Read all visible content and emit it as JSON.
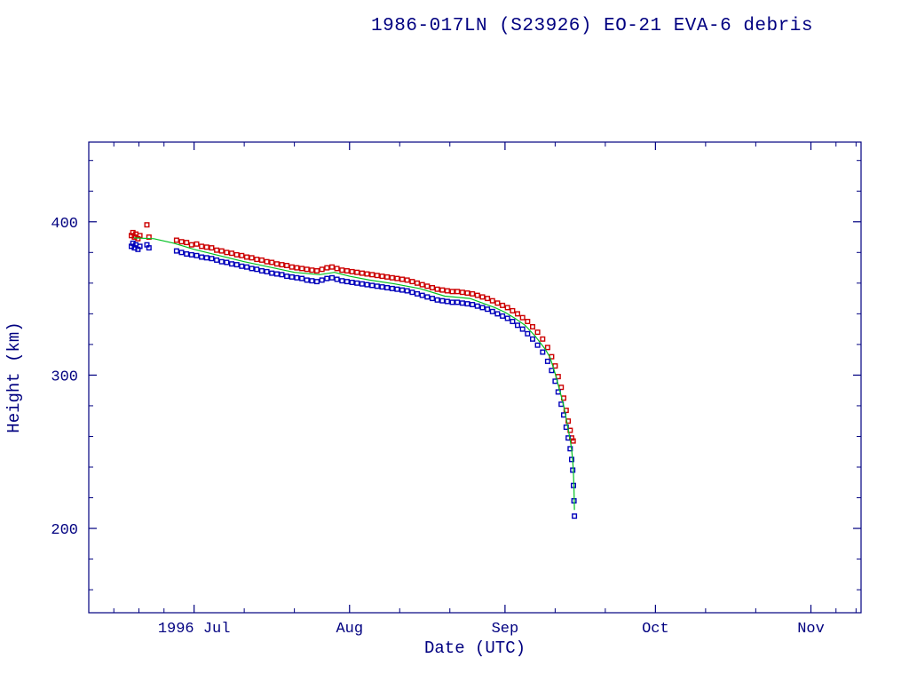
{
  "page": {
    "background": "#ffffff"
  },
  "chart_data": {
    "type": "scatter",
    "title": "1986-017LN (S23926) EO-21 EVA-6 debris",
    "xlabel": "Date (UTC)",
    "ylabel": "Height (km)",
    "x_unit": "days since 1996-06-01",
    "xlim": [
      9,
      163
    ],
    "ylim": [
      145,
      452
    ],
    "grid": false,
    "legend": "none",
    "axis_color": "#000080",
    "x_major_ticks": [
      {
        "value": 30,
        "label": "1996 Jul"
      },
      {
        "value": 61,
        "label": "Aug"
      },
      {
        "value": 92,
        "label": "Sep"
      },
      {
        "value": 122,
        "label": "Oct"
      },
      {
        "value": 153,
        "label": "Nov"
      }
    ],
    "x_minor_ticks": [
      14,
      19,
      24,
      40,
      50,
      71,
      81,
      102,
      112,
      132,
      142,
      158,
      162
    ],
    "y_major_ticks": [
      {
        "value": 200,
        "label": "200"
      },
      {
        "value": 300,
        "label": "300"
      },
      {
        "value": 400,
        "label": "400"
      }
    ],
    "y_minor_ticks": [
      160,
      180,
      220,
      240,
      260,
      280,
      320,
      340,
      360,
      380,
      420,
      440
    ],
    "series": [
      {
        "name": "red-squares-upper-height",
        "type": "scatter",
        "marker": "open-square",
        "color": "#cc0000",
        "points": [
          [
            17.5,
            391
          ],
          [
            17.8,
            393
          ],
          [
            18.1,
            390
          ],
          [
            18.4,
            392
          ],
          [
            18.8,
            389
          ],
          [
            19.2,
            391
          ],
          [
            20.6,
            398
          ],
          [
            21.0,
            390
          ],
          [
            26.5,
            388
          ],
          [
            27.5,
            387
          ],
          [
            28.5,
            386.5
          ],
          [
            29.5,
            385
          ],
          [
            30.5,
            385.5
          ],
          [
            31.5,
            384
          ],
          [
            32.5,
            383.5
          ],
          [
            33.5,
            383
          ],
          [
            34.5,
            381.5
          ],
          [
            35.5,
            381
          ],
          [
            36.5,
            380
          ],
          [
            37.5,
            379.5
          ],
          [
            38.5,
            378.5
          ],
          [
            39.5,
            378
          ],
          [
            40.5,
            377
          ],
          [
            41.5,
            376.5
          ],
          [
            42.5,
            375.5
          ],
          [
            43.5,
            375
          ],
          [
            44.5,
            374
          ],
          [
            45.5,
            373.5
          ],
          [
            46.5,
            372.5
          ],
          [
            47.5,
            372
          ],
          [
            48.5,
            371.5
          ],
          [
            49.5,
            370.5
          ],
          [
            50.5,
            370
          ],
          [
            51.5,
            369.5
          ],
          [
            52.5,
            369
          ],
          [
            53.5,
            368.5
          ],
          [
            54.5,
            368
          ],
          [
            55.5,
            369
          ],
          [
            56.5,
            370
          ],
          [
            57.5,
            370.5
          ],
          [
            58.5,
            369.5
          ],
          [
            59.5,
            368.5
          ],
          [
            60.5,
            368
          ],
          [
            61.5,
            367.5
          ],
          [
            62.5,
            367
          ],
          [
            63.5,
            366.5
          ],
          [
            64.5,
            366
          ],
          [
            65.5,
            365.5
          ],
          [
            66.5,
            365
          ],
          [
            67.5,
            364.5
          ],
          [
            68.5,
            364
          ],
          [
            69.5,
            363.5
          ],
          [
            70.5,
            363
          ],
          [
            71.5,
            362.5
          ],
          [
            72.5,
            362
          ],
          [
            73.5,
            361
          ],
          [
            74.5,
            360
          ],
          [
            75.5,
            359
          ],
          [
            76.5,
            358
          ],
          [
            77.5,
            357
          ],
          [
            78.5,
            356
          ],
          [
            79.5,
            355.5
          ],
          [
            80.5,
            355
          ],
          [
            81.5,
            354.5
          ],
          [
            82.5,
            354.5
          ],
          [
            83.5,
            354
          ],
          [
            84.5,
            353.5
          ],
          [
            85.5,
            353
          ],
          [
            86.5,
            352
          ],
          [
            87.5,
            351
          ],
          [
            88.5,
            350
          ],
          [
            89.5,
            348.5
          ],
          [
            90.5,
            347
          ],
          [
            91.5,
            345.5
          ],
          [
            92.5,
            344
          ],
          [
            93.5,
            342
          ],
          [
            94.5,
            340
          ],
          [
            95.5,
            337.5
          ],
          [
            96.5,
            335
          ],
          [
            97.5,
            331.5
          ],
          [
            98.5,
            328
          ],
          [
            99.5,
            323.5
          ],
          [
            100.5,
            318
          ],
          [
            101.3,
            312
          ],
          [
            102.0,
            306
          ],
          [
            102.6,
            299
          ],
          [
            103.2,
            292
          ],
          [
            103.7,
            285
          ],
          [
            104.2,
            277
          ],
          [
            104.6,
            270
          ],
          [
            105.0,
            264
          ],
          [
            105.3,
            259
          ],
          [
            105.6,
            257
          ]
        ]
      },
      {
        "name": "blue-squares-lower-height",
        "type": "scatter",
        "marker": "open-square",
        "color": "#0000bb",
        "points": [
          [
            17.5,
            384
          ],
          [
            17.8,
            386
          ],
          [
            18.1,
            383
          ],
          [
            18.4,
            385
          ],
          [
            18.8,
            382
          ],
          [
            19.2,
            384
          ],
          [
            20.6,
            385
          ],
          [
            21.0,
            383
          ],
          [
            26.5,
            381
          ],
          [
            27.5,
            380
          ],
          [
            28.5,
            379
          ],
          [
            29.5,
            378.5
          ],
          [
            30.5,
            378
          ],
          [
            31.5,
            377
          ],
          [
            32.5,
            376.5
          ],
          [
            33.5,
            376
          ],
          [
            34.5,
            375
          ],
          [
            35.5,
            374
          ],
          [
            36.5,
            373.5
          ],
          [
            37.5,
            372.5
          ],
          [
            38.5,
            372
          ],
          [
            39.5,
            371
          ],
          [
            40.5,
            370.5
          ],
          [
            41.5,
            369.5
          ],
          [
            42.5,
            369
          ],
          [
            43.5,
            368
          ],
          [
            44.5,
            367.5
          ],
          [
            45.5,
            366.5
          ],
          [
            46.5,
            366
          ],
          [
            47.5,
            365.5
          ],
          [
            48.5,
            364.5
          ],
          [
            49.5,
            364
          ],
          [
            50.5,
            363.5
          ],
          [
            51.5,
            363
          ],
          [
            52.5,
            362
          ],
          [
            53.5,
            361.5
          ],
          [
            54.5,
            361
          ],
          [
            55.5,
            362
          ],
          [
            56.5,
            363
          ],
          [
            57.5,
            363.5
          ],
          [
            58.5,
            362.5
          ],
          [
            59.5,
            361.5
          ],
          [
            60.5,
            361
          ],
          [
            61.5,
            360.5
          ],
          [
            62.5,
            360
          ],
          [
            63.5,
            359.5
          ],
          [
            64.5,
            359
          ],
          [
            65.5,
            358.5
          ],
          [
            66.5,
            358
          ],
          [
            67.5,
            357.5
          ],
          [
            68.5,
            357
          ],
          [
            69.5,
            356.5
          ],
          [
            70.5,
            356
          ],
          [
            71.5,
            355.5
          ],
          [
            72.5,
            355
          ],
          [
            73.5,
            354
          ],
          [
            74.5,
            353
          ],
          [
            75.5,
            352
          ],
          [
            76.5,
            351
          ],
          [
            77.5,
            350
          ],
          [
            78.5,
            349
          ],
          [
            79.5,
            348.5
          ],
          [
            80.5,
            348
          ],
          [
            81.5,
            347.5
          ],
          [
            82.5,
            347.5
          ],
          [
            83.5,
            347
          ],
          [
            84.5,
            346.5
          ],
          [
            85.5,
            346
          ],
          [
            86.5,
            345
          ],
          [
            87.5,
            344
          ],
          [
            88.5,
            343
          ],
          [
            89.5,
            341.5
          ],
          [
            90.5,
            340
          ],
          [
            91.5,
            338.5
          ],
          [
            92.5,
            337
          ],
          [
            93.5,
            335
          ],
          [
            94.5,
            332.5
          ],
          [
            95.5,
            330
          ],
          [
            96.5,
            327
          ],
          [
            97.5,
            323.5
          ],
          [
            98.5,
            319.5
          ],
          [
            99.5,
            315
          ],
          [
            100.5,
            309
          ],
          [
            101.3,
            303
          ],
          [
            102.0,
            296
          ],
          [
            102.6,
            289
          ],
          [
            103.2,
            281
          ],
          [
            103.7,
            274
          ],
          [
            104.2,
            266
          ],
          [
            104.6,
            259
          ],
          [
            105.0,
            252
          ],
          [
            105.3,
            245
          ],
          [
            105.5,
            238
          ],
          [
            105.65,
            228
          ],
          [
            105.75,
            218
          ],
          [
            105.85,
            208
          ]
        ]
      },
      {
        "name": "green-fit-line",
        "type": "line",
        "marker": "none",
        "color": "#00c020",
        "points": [
          [
            18,
            389.5
          ],
          [
            22,
            389
          ],
          [
            26,
            386
          ],
          [
            30,
            382
          ],
          [
            35,
            378
          ],
          [
            40,
            374
          ],
          [
            45,
            370.5
          ],
          [
            50,
            367
          ],
          [
            55,
            365.5
          ],
          [
            58,
            367
          ],
          [
            61,
            364.5
          ],
          [
            65,
            362
          ],
          [
            70,
            359.5
          ],
          [
            75,
            356.5
          ],
          [
            80,
            351.5
          ],
          [
            85,
            350
          ],
          [
            90,
            344
          ],
          [
            92,
            341
          ],
          [
            94,
            337
          ],
          [
            96,
            332.5
          ],
          [
            98,
            325.5
          ],
          [
            100,
            317
          ],
          [
            101,
            311.5
          ],
          [
            102,
            301
          ],
          [
            103,
            289
          ],
          [
            103.7,
            280
          ],
          [
            104.2,
            272
          ],
          [
            104.6,
            264.5
          ],
          [
            105,
            258
          ],
          [
            105.3,
            251
          ],
          [
            105.5,
            244
          ],
          [
            105.65,
            236
          ],
          [
            105.75,
            226
          ],
          [
            105.85,
            212
          ]
        ]
      }
    ]
  }
}
